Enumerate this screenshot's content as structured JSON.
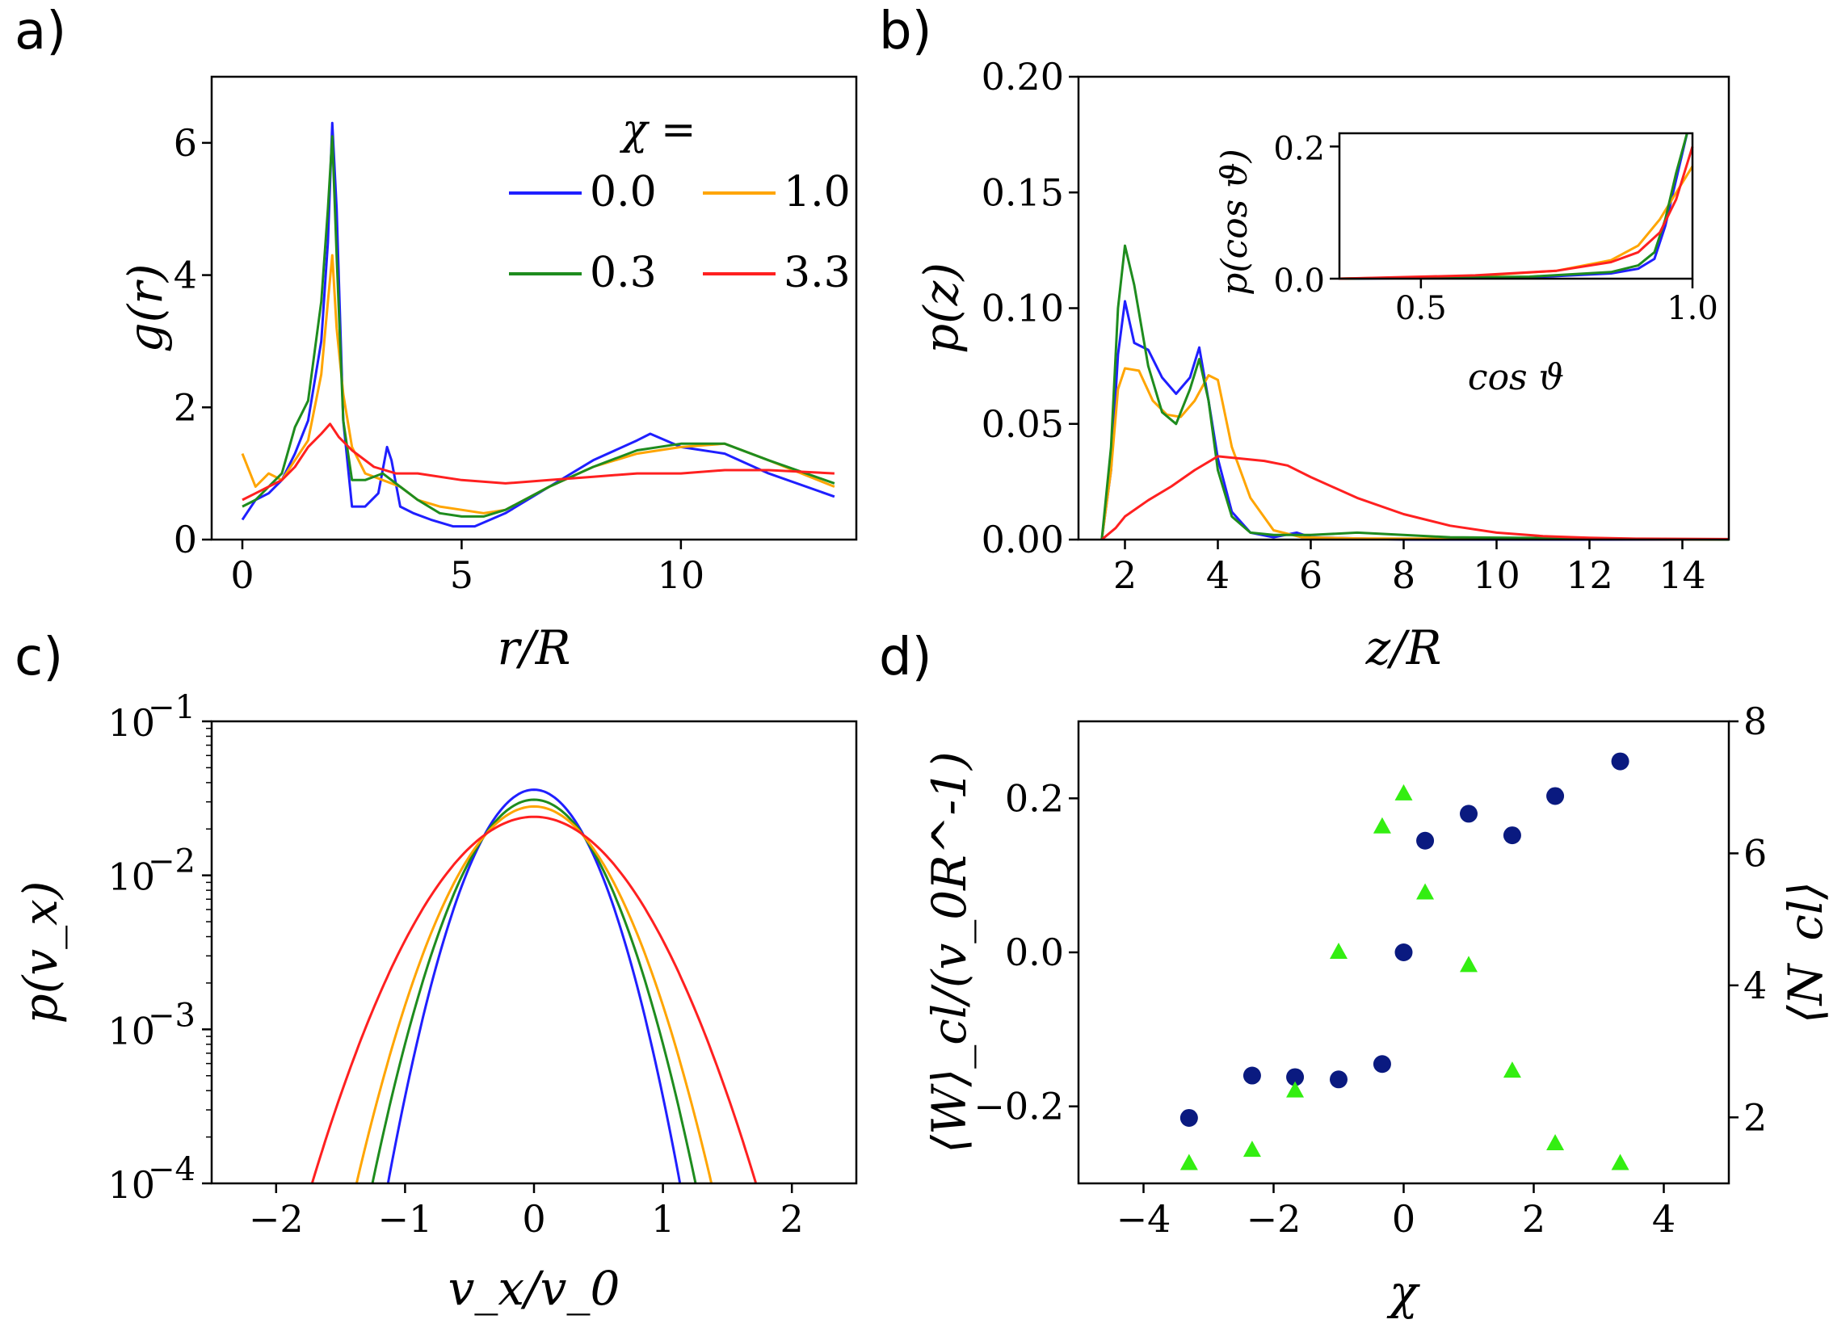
{
  "figure": {
    "panel_labels": [
      "a)",
      "b)",
      "c)",
      "d)"
    ]
  },
  "colors": {
    "chi_0.0": "#1f1fff",
    "chi_1.0": "#ffa500",
    "chi_0.3": "#1e8c1e",
    "chi_3.3": "#ff2020",
    "w_cl": "#0a1a80",
    "n_cl": "#33ee11"
  },
  "chart_data": [
    {
      "panel": "a)",
      "type": "line",
      "xlabel": "r/R",
      "ylabel": "g(r)",
      "xlim": [
        -0.7,
        14
      ],
      "ylim": [
        0,
        7
      ],
      "xticks": [
        0,
        5,
        10
      ],
      "yticks": [
        0,
        2,
        4,
        6
      ],
      "legend": {
        "title": "χ =",
        "entries": [
          "0.0",
          "1.0",
          "0.3",
          "3.3"
        ],
        "placement": "top-right"
      },
      "series": [
        {
          "name": "0.0",
          "color": "#1f1fff",
          "x": [
            0,
            0.3,
            0.6,
            0.9,
            1.2,
            1.5,
            1.8,
            1.95,
            2.05,
            2.15,
            2.3,
            2.5,
            2.8,
            3.1,
            3.3,
            3.4,
            3.6,
            3.9,
            4.3,
            4.8,
            5.3,
            6,
            7,
            8,
            9,
            9.3,
            10,
            11,
            12,
            13.5
          ],
          "y": [
            0.3,
            0.6,
            0.7,
            0.9,
            1.3,
            1.8,
            3.0,
            4.5,
            6.3,
            5.0,
            1.8,
            0.5,
            0.5,
            0.7,
            1.4,
            1.2,
            0.5,
            0.4,
            0.3,
            0.2,
            0.2,
            0.4,
            0.8,
            1.2,
            1.5,
            1.6,
            1.4,
            1.3,
            1.0,
            0.65
          ]
        },
        {
          "name": "1.0",
          "color": "#ffa500",
          "x": [
            0,
            0.3,
            0.6,
            0.9,
            1.2,
            1.5,
            1.8,
            1.95,
            2.05,
            2.15,
            2.3,
            2.5,
            2.8,
            3.2,
            3.6,
            4,
            4.5,
            5,
            5.5,
            6,
            7,
            8,
            9,
            10,
            11,
            12,
            13.5
          ],
          "y": [
            1.3,
            0.8,
            1.0,
            0.9,
            1.2,
            1.5,
            2.5,
            3.6,
            4.3,
            3.2,
            2.2,
            1.4,
            1.0,
            0.9,
            0.8,
            0.6,
            0.5,
            0.45,
            0.4,
            0.45,
            0.8,
            1.1,
            1.3,
            1.4,
            1.45,
            1.2,
            0.8
          ]
        },
        {
          "name": "0.3",
          "color": "#1e8c1e",
          "x": [
            0,
            0.3,
            0.6,
            0.9,
            1.2,
            1.5,
            1.8,
            1.95,
            2.05,
            2.15,
            2.3,
            2.5,
            2.8,
            3.2,
            3.6,
            4,
            4.5,
            5,
            5.5,
            6,
            7,
            8,
            9,
            10,
            11,
            12,
            13.5
          ],
          "y": [
            0.5,
            0.6,
            0.8,
            1.0,
            1.7,
            2.1,
            3.6,
            5.0,
            6.1,
            4.3,
            1.8,
            0.9,
            0.9,
            1.0,
            0.8,
            0.6,
            0.4,
            0.35,
            0.35,
            0.45,
            0.8,
            1.1,
            1.35,
            1.45,
            1.45,
            1.2,
            0.85
          ]
        },
        {
          "name": "3.3",
          "color": "#ff2020",
          "x": [
            0,
            0.3,
            0.6,
            0.9,
            1.2,
            1.5,
            1.8,
            2.0,
            2.2,
            2.5,
            3.0,
            3.5,
            4,
            5,
            6,
            7,
            8,
            9,
            10,
            11,
            12,
            13.5
          ],
          "y": [
            0.6,
            0.7,
            0.8,
            0.9,
            1.1,
            1.4,
            1.6,
            1.75,
            1.55,
            1.35,
            1.1,
            1.0,
            1.0,
            0.9,
            0.85,
            0.9,
            0.95,
            1.0,
            1.0,
            1.05,
            1.05,
            1.0
          ]
        }
      ]
    },
    {
      "panel": "b)",
      "type": "line",
      "xlabel": "z/R",
      "ylabel": "p(z)",
      "xlim": [
        1,
        15
      ],
      "ylim": [
        0,
        0.2
      ],
      "xticks": [
        2,
        4,
        6,
        8,
        10,
        12,
        14
      ],
      "ytick_labels": [
        "0.00",
        "0.05",
        "0.10",
        "0.15",
        "0.20"
      ],
      "yticks": [
        0,
        0.05,
        0.1,
        0.15,
        0.2
      ],
      "series": [
        {
          "name": "0.0",
          "color": "#1f1fff",
          "x": [
            1.5,
            1.7,
            1.85,
            2.0,
            2.2,
            2.5,
            2.8,
            3.1,
            3.4,
            3.6,
            3.8,
            4.0,
            4.3,
            4.7,
            5.2,
            5.7,
            6,
            7,
            8,
            15
          ],
          "y": [
            0,
            0.03,
            0.08,
            0.103,
            0.085,
            0.082,
            0.07,
            0.063,
            0.07,
            0.083,
            0.06,
            0.035,
            0.012,
            0.003,
            0.001,
            0.003,
            0.001,
            0.0005,
            0,
            0
          ]
        },
        {
          "name": "1.0",
          "color": "#ffa500",
          "x": [
            1.5,
            1.7,
            1.85,
            2.0,
            2.3,
            2.6,
            2.9,
            3.2,
            3.5,
            3.8,
            4.0,
            4.3,
            4.7,
            5.2,
            5.8,
            7,
            15
          ],
          "y": [
            0,
            0.03,
            0.065,
            0.074,
            0.073,
            0.06,
            0.054,
            0.053,
            0.06,
            0.071,
            0.069,
            0.04,
            0.018,
            0.004,
            0.001,
            0.0005,
            0
          ]
        },
        {
          "name": "0.3",
          "color": "#1e8c1e",
          "x": [
            1.5,
            1.7,
            1.85,
            2.0,
            2.2,
            2.5,
            2.8,
            3.1,
            3.4,
            3.6,
            3.8,
            4.0,
            4.3,
            4.7,
            5.2,
            6,
            7,
            8,
            9,
            15
          ],
          "y": [
            0,
            0.04,
            0.1,
            0.127,
            0.11,
            0.075,
            0.055,
            0.05,
            0.065,
            0.078,
            0.06,
            0.03,
            0.01,
            0.003,
            0.002,
            0.002,
            0.003,
            0.002,
            0.001,
            0
          ]
        },
        {
          "name": "3.3",
          "color": "#ff2020",
          "x": [
            1.5,
            1.8,
            2.0,
            2.5,
            3.0,
            3.5,
            4.0,
            4.5,
            5.0,
            5.5,
            6,
            7,
            8,
            9,
            10,
            11,
            12,
            13,
            15
          ],
          "y": [
            0,
            0.005,
            0.01,
            0.017,
            0.023,
            0.03,
            0.036,
            0.035,
            0.034,
            0.032,
            0.027,
            0.018,
            0.011,
            0.006,
            0.003,
            0.0015,
            0.0008,
            0.0004,
            0.0002
          ]
        }
      ]
    },
    {
      "panel": "b) inset",
      "type": "line",
      "xlabel": "cos ϑ",
      "ylabel": "p(cos ϑ)",
      "xlim": [
        0.35,
        1.0
      ],
      "ylim": [
        0,
        0.22
      ],
      "xticks": [
        0.5,
        1.0
      ],
      "xtick_labels": [
        "0.5",
        "1.0"
      ],
      "yticks": [
        0,
        0.2
      ],
      "ytick_labels": [
        "0.0",
        "0.2"
      ],
      "series": [
        {
          "name": "0.0",
          "color": "#1f1fff",
          "x": [
            0.35,
            0.7,
            0.85,
            0.9,
            0.93,
            0.95,
            0.97,
            0.99
          ],
          "y": [
            0,
            0.002,
            0.008,
            0.015,
            0.03,
            0.08,
            0.15,
            0.22
          ]
        },
        {
          "name": "1.0",
          "color": "#ffa500",
          "x": [
            0.35,
            0.6,
            0.75,
            0.85,
            0.9,
            0.94,
            0.97,
            1.0
          ],
          "y": [
            0,
            0.004,
            0.012,
            0.028,
            0.05,
            0.09,
            0.13,
            0.17
          ]
        },
        {
          "name": "0.3",
          "color": "#1e8c1e",
          "x": [
            0.35,
            0.7,
            0.85,
            0.9,
            0.93,
            0.95,
            0.97,
            0.99
          ],
          "y": [
            0,
            0.003,
            0.01,
            0.02,
            0.04,
            0.09,
            0.16,
            0.22
          ]
        },
        {
          "name": "3.3",
          "color": "#ff2020",
          "x": [
            0.35,
            0.6,
            0.75,
            0.85,
            0.9,
            0.94,
            0.97,
            1.0
          ],
          "y": [
            0,
            0.005,
            0.012,
            0.025,
            0.04,
            0.07,
            0.12,
            0.2
          ]
        }
      ]
    },
    {
      "panel": "c)",
      "type": "line",
      "xlabel": "v_x/v_0",
      "ylabel": "p(v_x)",
      "yscale": "log",
      "xlim": [
        -2.5,
        2.5
      ],
      "ylim": [
        0.0001,
        0.1
      ],
      "xticks": [
        -2,
        -1,
        0,
        1,
        2
      ],
      "yticks": [
        0.0001,
        0.001,
        0.01,
        0.1
      ],
      "ytick_labels": [
        "10^-4",
        "10^-3",
        "10^-2",
        "10^-1"
      ],
      "series": [
        {
          "name": "0.0",
          "color": "#1f1fff",
          "sigma": 0.33,
          "peak": 0.036
        },
        {
          "name": "0.3",
          "color": "#1e8c1e",
          "sigma": 0.37,
          "peak": 0.031
        },
        {
          "name": "1.0",
          "color": "#ffa500",
          "sigma": 0.41,
          "peak": 0.028
        },
        {
          "name": "3.3",
          "color": "#ff2020",
          "sigma": 0.52,
          "peak": 0.024
        }
      ]
    },
    {
      "panel": "d)",
      "type": "scatter",
      "xlabel": "χ",
      "ylabel": "⟨W⟩_cl/(v_0R^-1)",
      "y2label": "⟨N_cl⟩",
      "xlim": [
        -5,
        5
      ],
      "ylim": [
        -0.3,
        0.3
      ],
      "y2lim": [
        1,
        8
      ],
      "xticks": [
        -4,
        -2,
        0,
        2,
        4
      ],
      "yticks": [
        -0.2,
        0.0,
        0.2
      ],
      "ytick_labels": [
        "−0.2",
        "0.0",
        "0.2"
      ],
      "y2ticks": [
        2,
        4,
        6,
        8
      ],
      "series": [
        {
          "name": "W_cl",
          "axis": "left",
          "marker": "circle",
          "color": "#0a1a80",
          "x": [
            -3.3,
            -2.33,
            -1.67,
            -1.0,
            -0.33,
            0.0,
            0.33,
            1.0,
            1.67,
            2.33,
            3.33
          ],
          "y": [
            -0.215,
            -0.16,
            -0.162,
            -0.165,
            -0.145,
            0.0,
            0.145,
            0.18,
            0.152,
            0.203,
            0.248
          ]
        },
        {
          "name": "N_cl",
          "axis": "right",
          "marker": "triangle",
          "color": "#33ee11",
          "x": [
            -3.3,
            -2.33,
            -1.67,
            -1.0,
            -0.33,
            0.0,
            0.33,
            1.0,
            1.67,
            2.33,
            3.33
          ],
          "y": [
            1.3,
            1.5,
            2.4,
            4.5,
            6.4,
            6.9,
            5.4,
            4.3,
            2.7,
            1.6,
            1.3
          ]
        }
      ]
    }
  ]
}
